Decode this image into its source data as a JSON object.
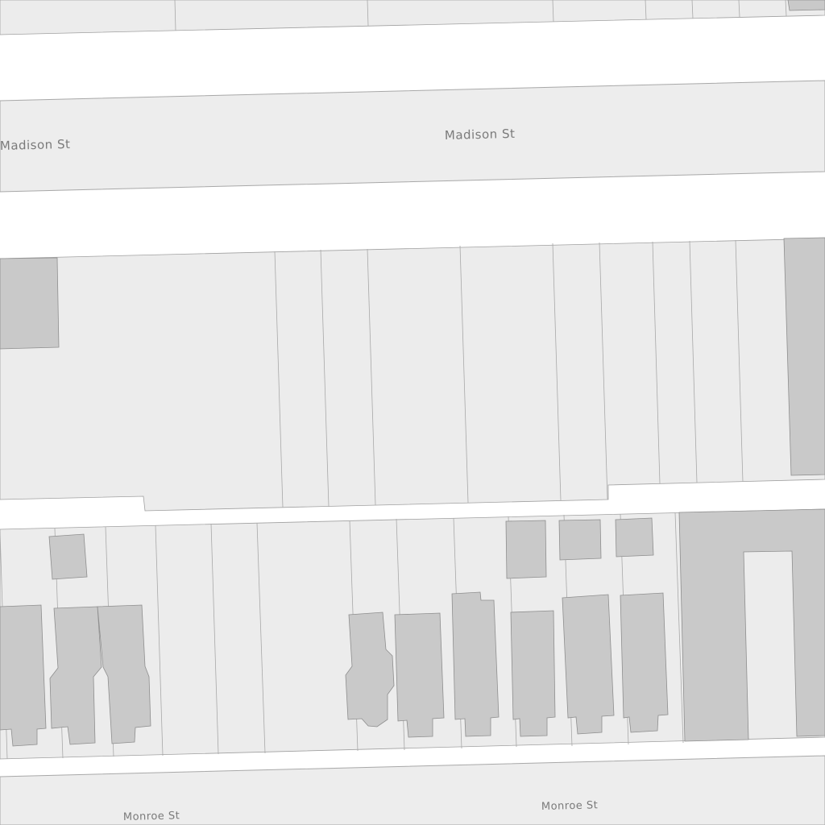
{
  "map": {
    "streets": {
      "madison_left": "Madison St",
      "madison_center": "Madison St",
      "monroe_left": "Monroe St",
      "monroe_center": "Monroe St"
    }
  }
}
